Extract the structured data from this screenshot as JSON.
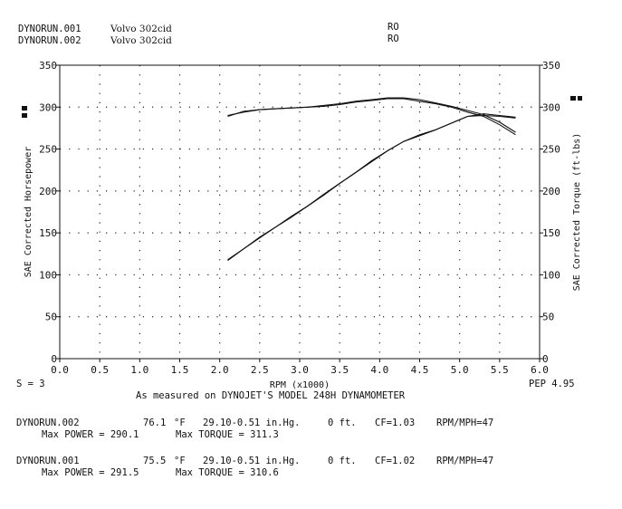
{
  "header": {
    "run1_file": "DYNORUN.001",
    "run1_name": "Volvo 302cid",
    "run1_tag": "RO",
    "run2_file": "DYNORUN.002",
    "run2_name": "Volvo 302cid",
    "run2_tag": "RO"
  },
  "footer": {
    "smoothing": "S = 3",
    "pep": "PEP 4.95",
    "measured": "As measured on DYNOJET'S MODEL 248H DYNAMOMETER"
  },
  "runs": [
    {
      "file": "DYNORUN.002",
      "temp": "76.1",
      "temp_unit": "°F",
      "baro": "29.10-0.51 in.Hg.",
      "alt": "0 ft.",
      "cf": "CF=1.03",
      "rpm_mph": "RPM/MPH=47",
      "max_power": "Max POWER = 290.1",
      "max_torque": "Max TORQUE = 311.3"
    },
    {
      "file": "DYNORUN.001",
      "temp": "75.5",
      "temp_unit": "°F",
      "baro": "29.10-0.51 in.Hg.",
      "alt": "0 ft.",
      "cf": "CF=1.02",
      "rpm_mph": "RPM/MPH=47",
      "max_power": "Max POWER = 291.5",
      "max_torque": "Max TORQUE = 310.6"
    }
  ],
  "chart_data": {
    "type": "line",
    "xlabel": "RPM (x1000)",
    "ylabel_left": "SAE Corrected Horsepower",
    "ylabel_right": "SAE Corrected Torque (ft-lbs)",
    "xlim": [
      0,
      6
    ],
    "ylim": [
      0,
      350
    ],
    "x_ticks": [
      "0.0",
      "0.5",
      "1.0",
      "1.5",
      "2.0",
      "2.5",
      "3.0",
      "3.5",
      "4.0",
      "4.5",
      "5.0",
      "5.5",
      "6.0"
    ],
    "y_ticks": [
      "0",
      "50",
      "100",
      "150",
      "200",
      "250",
      "300",
      "350"
    ],
    "grid": true,
    "series": [
      {
        "name": "DYNORUN.001",
        "x": [
          2.1,
          2.3,
          2.5,
          2.7,
          2.9,
          3.1,
          3.3,
          3.5,
          3.7,
          3.9,
          4.1,
          4.3,
          4.5,
          4.7,
          4.9,
          5.1,
          5.3,
          5.5,
          5.7
        ],
        "y": [
          117,
          131,
          144,
          157,
          169,
          182,
          195,
          209,
          222,
          235,
          248,
          259,
          266,
          273,
          281,
          289,
          292,
          290,
          288
        ]
      },
      {
        "name": "DYNORUN.002",
        "x": [
          2.1,
          2.3,
          2.5,
          2.7,
          2.9,
          3.1,
          3.3,
          3.5,
          3.7,
          3.9,
          4.1,
          4.3,
          4.5,
          4.7,
          4.9,
          5.1,
          5.3,
          5.5,
          5.7
        ],
        "y": [
          118,
          131,
          145,
          157,
          170,
          182,
          196,
          209,
          222,
          236,
          248,
          259,
          267,
          273,
          281,
          289,
          290,
          289,
          287
        ]
      },
      {
        "name": "DYNORUN.001 torque",
        "x": [
          2.1,
          2.3,
          2.5,
          2.7,
          2.9,
          3.1,
          3.3,
          3.5,
          3.7,
          3.9,
          4.1,
          4.3,
          4.5,
          4.7,
          4.9,
          5.1,
          5.3,
          5.5,
          5.7
        ],
        "y": [
          289,
          295,
          297,
          298,
          299,
          300,
          301,
          303,
          306,
          308,
          310,
          310,
          307,
          304,
          300,
          294,
          289,
          279,
          267
        ]
      },
      {
        "name": "DYNORUN.002 torque",
        "x": [
          2.1,
          2.3,
          2.5,
          2.7,
          2.9,
          3.1,
          3.3,
          3.5,
          3.7,
          3.9,
          4.1,
          4.3,
          4.5,
          4.7,
          4.9,
          5.1,
          5.3,
          5.5,
          5.7
        ],
        "y": [
          290,
          294,
          297,
          298,
          299,
          300,
          302,
          304,
          307,
          309,
          311,
          311,
          309,
          305,
          301,
          296,
          291,
          282,
          270
        ]
      }
    ]
  }
}
